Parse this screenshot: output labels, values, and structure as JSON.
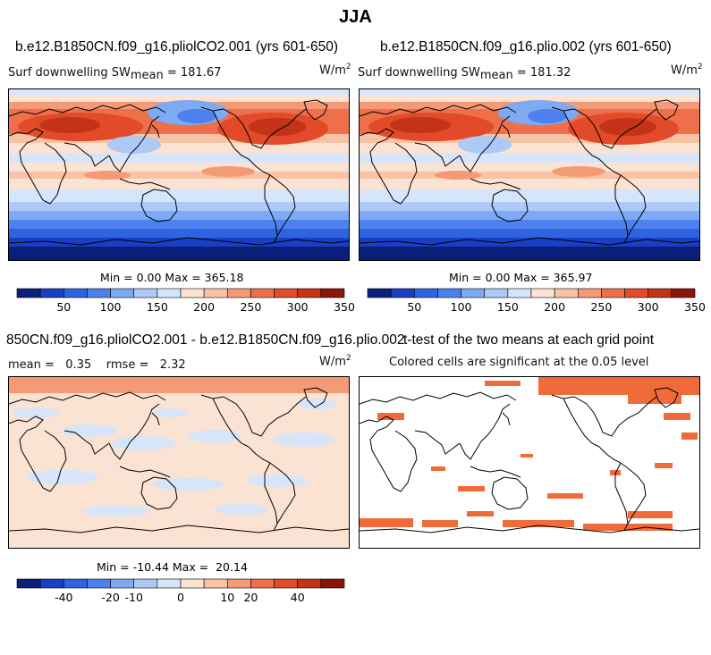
{
  "figure": {
    "title": "JJA"
  },
  "panels": [
    {
      "id": "p1",
      "title": "b.e12.B1850CN.f09_g16.pliolCO2.001 (yrs 601-650)",
      "variable_label": "Surf downwelling SW",
      "stat_label": "mean",
      "stat_value": "= 181.67",
      "units": "W/m",
      "units_exp": "2",
      "minmax": "Min =   0.00 Max = 365.18"
    },
    {
      "id": "p2",
      "title": "b.e12.B1850CN.f09_g16.plio.002 (yrs 601-650)",
      "variable_label": "Surf downwelling SW",
      "stat_label": "mean",
      "stat_value": "= 181.32",
      "units": "W/m",
      "units_exp": "2",
      "minmax": "Min =   0.00 Max = 365.97"
    },
    {
      "id": "p3",
      "title": "850CN.f09_g16.pliolCO2.001 - b.e12.B1850CN.f09_g16.plio.002",
      "stats_text": "mean =   0.35    rmse =   2.32",
      "units": "W/m",
      "units_exp": "2",
      "minmax": "Min = -10.44 Max =  20.14"
    },
    {
      "id": "p4",
      "title": "t-test of the two means at each grid point",
      "subtitle": "Colored cells are significant at the 0.05 level"
    }
  ],
  "colors": {
    "sw_scale": [
      "#0a1f7a",
      "#1a3ec4",
      "#2f64e0",
      "#4d82ee",
      "#7ea9f3",
      "#adc9f7",
      "#d6e5fa",
      "#fbe3d4",
      "#f9c3a6",
      "#f49a76",
      "#ee6f4a",
      "#e24a2a",
      "#c23318",
      "#8c1408"
    ],
    "diff_scale": [
      "#0a1f7a",
      "#1a3ec4",
      "#2f64e0",
      "#4d82ee",
      "#7ea9f3",
      "#adc9f7",
      "#d6e5fa",
      "#fbe3d4",
      "#f9c3a6",
      "#f49a76",
      "#ee6f4a",
      "#e24a2a",
      "#c23318",
      "#8c1408"
    ],
    "significant": "#f06a3a",
    "land_outline": "#000000"
  },
  "chart_data": [
    {
      "type": "heatmap",
      "panel": "p1",
      "title": "b.e12.B1850CN.f09_g16.pliolCO2.001 (yrs 601-650)",
      "mean": 181.67,
      "min": 0.0,
      "max": 365.18,
      "units": "W/m2",
      "colorbar_levels": [
        25,
        50,
        75,
        100,
        125,
        150,
        175,
        200,
        225,
        250,
        275,
        300,
        325,
        350
      ],
      "colorbar_tick_labels": [
        "50",
        "100",
        "150",
        "200",
        "250",
        "300",
        "350"
      ],
      "colorbar_tick_values": [
        50,
        100,
        150,
        200,
        250,
        300,
        350
      ]
    },
    {
      "type": "heatmap",
      "panel": "p2",
      "title": "b.e12.B1850CN.f09_g16.plio.002 (yrs 601-650)",
      "mean": 181.32,
      "min": 0.0,
      "max": 365.97,
      "units": "W/m2",
      "colorbar_levels": [
        25,
        50,
        75,
        100,
        125,
        150,
        175,
        200,
        225,
        250,
        275,
        300,
        325,
        350
      ],
      "colorbar_tick_labels": [
        "50",
        "100",
        "150",
        "200",
        "250",
        "300",
        "350"
      ],
      "colorbar_tick_values": [
        50,
        100,
        150,
        200,
        250,
        300,
        350
      ]
    },
    {
      "type": "heatmap",
      "panel": "p3",
      "title": "850CN.f09_g16.pliolCO2.001 - b.e12.B1850CN.f09_g16.plio.002",
      "mean": 0.35,
      "rmse": 2.32,
      "min": -10.44,
      "max": 20.14,
      "units": "W/m2",
      "colorbar_levels": [
        -50,
        -40,
        -30,
        -20,
        -10,
        -5,
        0,
        5,
        10,
        20,
        30,
        40,
        50
      ],
      "colorbar_tick_labels": [
        "-40",
        "-20",
        "-10",
        "0",
        "10",
        "20",
        "40"
      ],
      "colorbar_tick_values": [
        -40,
        -20,
        -10,
        0,
        10,
        20,
        40
      ]
    },
    {
      "type": "heatmap",
      "panel": "p4",
      "title": "t-test of the two means at each grid point",
      "significance_level": 0.05
    }
  ]
}
